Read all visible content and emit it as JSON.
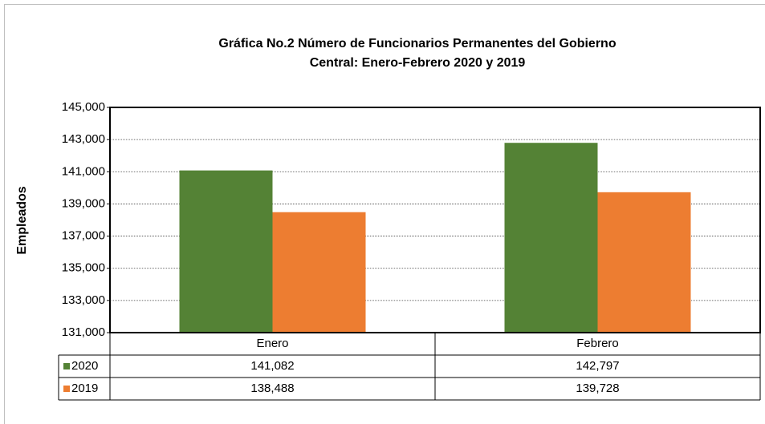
{
  "chart_data": {
    "type": "bar",
    "title": "Gráfica No.2 Número de Funcionarios Permanentes del Gobierno",
    "subtitle": "Central: Enero-Febrero 2020 y 2019",
    "ylabel": "Empleados",
    "categories": [
      "Enero",
      "Febrero"
    ],
    "series": [
      {
        "name": "2020",
        "color": "#548235",
        "values": [
          141082,
          142797
        ],
        "value_labels": [
          "141,082",
          "142,797"
        ]
      },
      {
        "name": "2019",
        "color": "#ed7d31",
        "values": [
          138488,
          139728
        ],
        "value_labels": [
          "138,488",
          "139,728"
        ]
      }
    ],
    "ylim": [
      131000,
      145000
    ],
    "yticks": [
      {
        "value": 131000,
        "label": "131,000"
      },
      {
        "value": 133000,
        "label": "133,000"
      },
      {
        "value": 135000,
        "label": "135,000"
      },
      {
        "value": 137000,
        "label": "137,000"
      },
      {
        "value": 139000,
        "label": "139,000"
      },
      {
        "value": 141000,
        "label": "141,000"
      },
      {
        "value": 143000,
        "label": "143,000"
      },
      {
        "value": 145000,
        "label": "145,000"
      }
    ],
    "grid": true
  }
}
